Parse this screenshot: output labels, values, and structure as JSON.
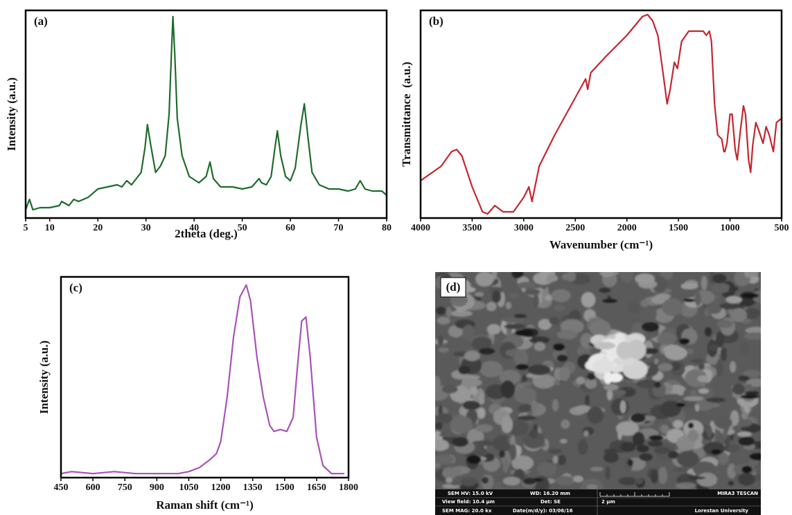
{
  "chart_data": [
    {
      "type": "line",
      "panel_label": "(a)",
      "x_label": "2theta (deg.)",
      "y_label": "Intensity (a.u.)",
      "color": "#1e6b2c",
      "x": [
        5,
        5.8,
        6.5,
        8,
        10,
        12,
        12.5,
        14,
        15,
        16,
        18,
        20,
        22,
        24,
        25,
        26,
        27,
        28,
        29,
        29.8,
        30.3,
        31,
        32,
        33,
        34,
        34.8,
        35.3,
        35.6,
        36,
        36.5,
        37.5,
        39,
        41,
        42.5,
        43.3,
        44,
        45.5,
        48,
        50,
        52,
        53.5,
        54,
        55,
        56,
        56.8,
        57.3,
        58,
        59,
        60,
        61,
        62.2,
        62.9,
        63.6,
        64.5,
        66,
        68,
        70,
        72,
        73.5,
        74.5,
        75.5,
        77,
        79,
        80
      ],
      "values": [
        4,
        9,
        4,
        5,
        5,
        6,
        8,
        6,
        9,
        8,
        10,
        14,
        15,
        16,
        15,
        18,
        16,
        19,
        22,
        34,
        45,
        35,
        22,
        25,
        30,
        50,
        80,
        97,
        78,
        48,
        30,
        20,
        17,
        20,
        27,
        19,
        15,
        15,
        14,
        15,
        19,
        17,
        16,
        20,
        34,
        42,
        30,
        20,
        18,
        24,
        45,
        55,
        40,
        22,
        16,
        14,
        14,
        13,
        14,
        18,
        14,
        13,
        13,
        11
      ],
      "xlim": [
        5,
        80
      ],
      "xticks": [
        5,
        10,
        20,
        30,
        40,
        50,
        60,
        70,
        80
      ],
      "ylim": [
        0,
        100
      ]
    },
    {
      "type": "line",
      "panel_label": "(b)",
      "x_label": "Wavenumber (cm⁻¹)",
      "y_label": "Transmittance  (a.u.)",
      "color": "#c4262e",
      "x": [
        4000,
        3800,
        3700,
        3650,
        3600,
        3500,
        3400,
        3350,
        3280,
        3200,
        3100,
        3000,
        2950,
        2920,
        2850,
        2700,
        2500,
        2400,
        2380,
        2350,
        2200,
        2000,
        1850,
        1800,
        1750,
        1700,
        1650,
        1610,
        1580,
        1540,
        1510,
        1470,
        1400,
        1300,
        1260,
        1230,
        1200,
        1180,
        1150,
        1120,
        1080,
        1060,
        1050,
        1030,
        1000,
        980,
        950,
        930,
        900,
        870,
        850,
        820,
        800,
        780,
        750,
        720,
        680,
        650,
        620,
        580,
        550,
        500
      ],
      "values": [
        18,
        25,
        32,
        33,
        30,
        15,
        3,
        2,
        6,
        3,
        3,
        10,
        15,
        8,
        25,
        40,
        58,
        67,
        62,
        70,
        78,
        88,
        97,
        98,
        95,
        88,
        70,
        55,
        62,
        75,
        72,
        85,
        90,
        90,
        90,
        88,
        90,
        85,
        55,
        40,
        38,
        32,
        32,
        36,
        50,
        50,
        33,
        28,
        42,
        54,
        50,
        28,
        22,
        35,
        46,
        42,
        36,
        44,
        40,
        32,
        46,
        48
      ],
      "xlim": [
        4000,
        500
      ],
      "xticks": [
        4000,
        3500,
        3000,
        2500,
        2000,
        1500,
        1000,
        500
      ],
      "ylim": [
        0,
        100
      ]
    },
    {
      "type": "line",
      "panel_label": "(c)",
      "x_label": "Raman shift (cm⁻¹)",
      "y_label": "Intensity (a.u.)",
      "color": "#a653b5",
      "x": [
        450,
        500,
        600,
        700,
        800,
        900,
        1000,
        1050,
        1100,
        1150,
        1180,
        1200,
        1230,
        1260,
        1290,
        1320,
        1340,
        1370,
        1400,
        1430,
        1450,
        1480,
        1510,
        1540,
        1560,
        1580,
        1600,
        1620,
        1650,
        1680,
        1720,
        1780
      ],
      "values": [
        2,
        3,
        2,
        3,
        2,
        2,
        2,
        3,
        5,
        9,
        12,
        18,
        40,
        70,
        90,
        96,
        88,
        60,
        40,
        26,
        23,
        24,
        23,
        30,
        55,
        78,
        80,
        60,
        20,
        6,
        2,
        2
      ],
      "xlim": [
        450,
        1800
      ],
      "xticks": [
        450,
        600,
        750,
        900,
        1050,
        1200,
        1350,
        1500,
        1650,
        1800
      ],
      "ylim": [
        0,
        100
      ]
    }
  ],
  "image_panel": {
    "label": "(d)",
    "info": [
      "SEM HV: 15.0 kV",
      "WD: 16.20 mm",
      "MIRA3 TESCAN",
      "View field: 10.4 μm",
      "Det: SE",
      "2 μm",
      "SEM MAG: 20.0 kx",
      "Date(m/d/y): 03/06/16",
      "Lorestan University"
    ]
  }
}
